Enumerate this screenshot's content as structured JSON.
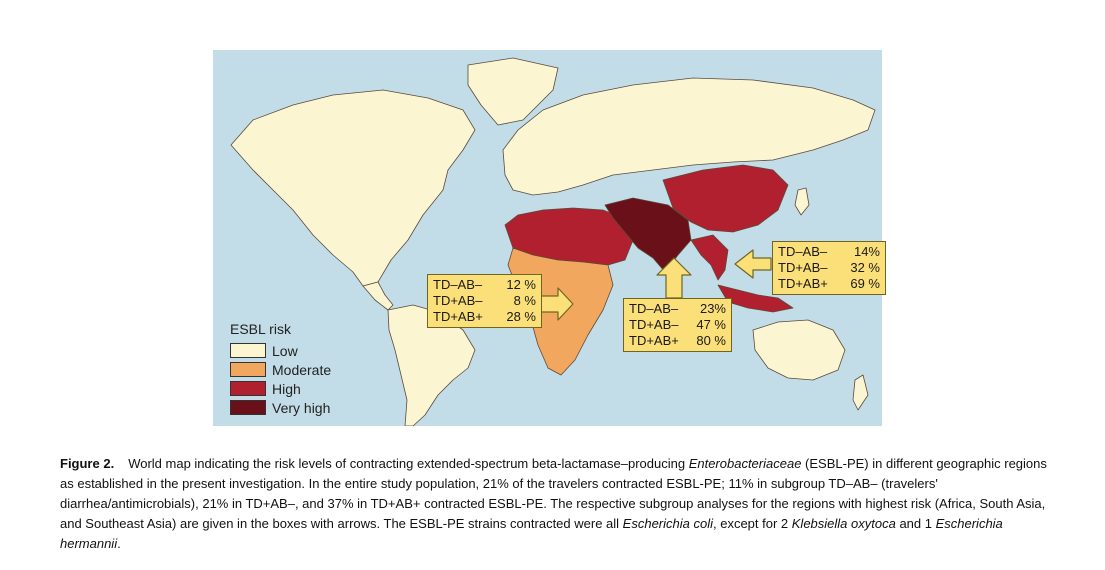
{
  "legend": {
    "title": "ESBL risk",
    "items": [
      {
        "label": "Low",
        "color": "#fcf5d2"
      },
      {
        "label": "Moderate",
        "color": "#f2a75f"
      },
      {
        "label": "High",
        "color": "#b1202e"
      },
      {
        "label": "Very high",
        "color": "#6a1019"
      }
    ]
  },
  "colors": {
    "ocean": "#c2dde7",
    "callout_fill": "#fbe07a",
    "callout_border": "#6f6520"
  },
  "callouts": {
    "africa": {
      "region": "Africa",
      "rows": [
        {
          "group": "TD–AB–",
          "value": "12 %"
        },
        {
          "group": "TD+AB–",
          "value": "8 %"
        },
        {
          "group": "TD+AB+",
          "value": "28 %"
        }
      ]
    },
    "south_asia": {
      "region": "South Asia",
      "rows": [
        {
          "group": "TD–AB–",
          "value": "23%"
        },
        {
          "group": "TD+AB–",
          "value": "47 %"
        },
        {
          "group": "TD+AB+",
          "value": "80 %"
        }
      ]
    },
    "southeast_asia": {
      "region": "Southeast Asia",
      "rows": [
        {
          "group": "TD–AB–",
          "value": "14%"
        },
        {
          "group": "TD+AB–",
          "value": "32 %"
        },
        {
          "group": "TD+AB+",
          "value": "69 %"
        }
      ]
    }
  },
  "caption": {
    "label": "Figure 2.",
    "t1": "World map indicating the risk levels of contracting extended-spectrum beta-lactamase–producing ",
    "i1": "Enterobacteriaceae",
    "t2": " (ESBL-PE) in different geographic regions as established in the present investigation. In the entire study population, 21% of the travelers contracted ESBL-PE; 11% in subgroup TD–AB– (travelers' diarrhea/antimicrobials), 21% in TD+AB–, and 37% in TD+AB+ contracted ESBL-PE. The respective subgroup analyses for the regions with highest risk (Africa, South Asia, and Southeast Asia) are given in the boxes with arrows. The ESBL-PE strains contracted were all ",
    "i2": "Escherichia coli",
    "t3": ", except for 2 ",
    "i3": "Klebsiella oxytoca",
    "t4": " and 1 ",
    "i4": "Escherichia hermannii",
    "t5": "."
  }
}
